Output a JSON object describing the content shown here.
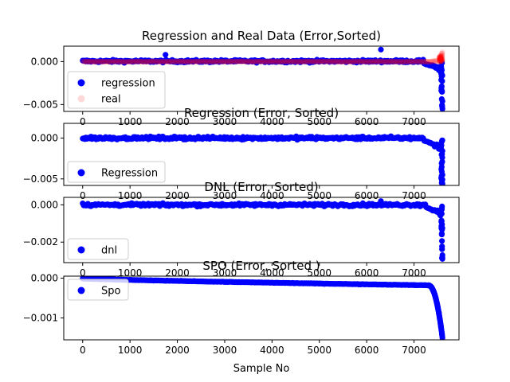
{
  "figure": {
    "xlabel": "Sample No"
  },
  "colors": {
    "blue": "#0000ff",
    "red": "#ff0000",
    "axis": "#000000"
  },
  "chart_data": [
    {
      "type": "scatter",
      "title": "Regression and Real Data (Error,Sorted)",
      "xlabel": "",
      "ylabel": "",
      "xlim": [
        -400,
        7950
      ],
      "ylim": [
        -0.0058,
        0.0018
      ],
      "xticks": [
        0,
        1000,
        2000,
        3000,
        4000,
        5000,
        6000,
        7000
      ],
      "yticks": [
        0.0,
        -0.005
      ],
      "ytick_labels": [
        "0.000",
        "−0.005"
      ],
      "legend": {
        "placement": "lower-left",
        "entries": [
          "regression",
          "real"
        ]
      },
      "series": [
        {
          "name": "regression",
          "color": "#0000ff",
          "alpha": 1.0,
          "n_points": 7600,
          "band": {
            "center": 5e-05,
            "spread": 0.00025
          },
          "tail": {
            "start_x": 7200,
            "end_x": 7600,
            "min": -0.0055
          },
          "outliers": [
            [
              6300,
              0.0014
            ],
            [
              1750,
              0.0008
            ],
            [
              7600,
              -0.0055
            ],
            [
              7600,
              -0.0046
            ]
          ]
        },
        {
          "name": "real",
          "color": "#ff0000",
          "alpha": 0.15,
          "n_points": 7600,
          "band": {
            "center": 0.0,
            "spread": 8e-05
          },
          "tail": {
            "start_x": 7300,
            "end_x": 7600,
            "max": 0.0011
          },
          "outliers": [
            [
              7600,
              0.0011
            ]
          ]
        }
      ]
    },
    {
      "type": "scatter",
      "title": "Regression (Error, Sorted)",
      "xlabel": "",
      "ylabel": "",
      "xlim": [
        -400,
        7950
      ],
      "ylim": [
        -0.0058,
        0.0018
      ],
      "xticks": [
        0,
        1000,
        2000,
        3000,
        4000,
        5000,
        6000,
        7000
      ],
      "yticks": [
        0.0,
        -0.005
      ],
      "ytick_labels": [
        "0.000",
        "−0.005"
      ],
      "legend": {
        "placement": "lower-left",
        "entries": [
          "Regression"
        ]
      },
      "series": [
        {
          "name": "Regression",
          "color": "#0000ff",
          "alpha": 1.0,
          "n_points": 7600,
          "band": {
            "center": 0.0,
            "spread": 0.0003
          },
          "tail": {
            "start_x": 7200,
            "end_x": 7600,
            "min": -0.0057
          },
          "outliers": [
            [
              7600,
              -0.0057
            ],
            [
              7600,
              -0.0051
            ],
            [
              7600,
              -0.0045
            ]
          ]
        }
      ]
    },
    {
      "type": "scatter",
      "title": "DNL (Error, Sorted)",
      "xlabel": "",
      "ylabel": "",
      "xlim": [
        -400,
        7950
      ],
      "ylim": [
        -0.0031,
        0.0004
      ],
      "xticks": [
        0,
        1000,
        2000,
        3000,
        4000,
        5000,
        6000,
        7000
      ],
      "yticks": [
        0.0,
        -0.002
      ],
      "ytick_labels": [
        "0.000",
        "−0.002"
      ],
      "legend": {
        "placement": "lower-left",
        "entries": [
          "dnl"
        ]
      },
      "series": [
        {
          "name": "dnl",
          "color": "#0000ff",
          "alpha": 1.0,
          "n_points": 7600,
          "band": {
            "center": 0.0,
            "spread": 0.00012
          },
          "tail": {
            "start_x": 7250,
            "end_x": 7600,
            "min": -0.0029
          },
          "outliers": [
            [
              6300,
              0.0002
            ],
            [
              7600,
              -0.0029
            ],
            [
              7600,
              -0.0027
            ]
          ]
        }
      ]
    },
    {
      "type": "scatter",
      "title": "SPO (Error, Sorted  )",
      "xlabel": "Sample No",
      "ylabel": "",
      "xlim": [
        -400,
        7950
      ],
      "ylim": [
        -0.00155,
        5e-05
      ],
      "xticks": [
        0,
        1000,
        2000,
        3000,
        4000,
        5000,
        6000,
        7000
      ],
      "xtick_labels": [
        "0",
        "1000",
        "2000",
        "3000",
        "4000",
        "5000",
        "6000",
        "7000"
      ],
      "yticks": [
        0.0,
        -0.001
      ],
      "ytick_labels": [
        "0.000",
        "−0.001"
      ],
      "legend": {
        "placement": "upper-left",
        "entries": [
          "Spo"
        ]
      },
      "series": [
        {
          "name": "Spo",
          "color": "#0000ff",
          "alpha": 1.0,
          "n_points": 7600,
          "curve": {
            "start": -1e-05,
            "mid": -0.00018,
            "knee_x": 7300,
            "end": -0.0015
          }
        }
      ]
    }
  ]
}
